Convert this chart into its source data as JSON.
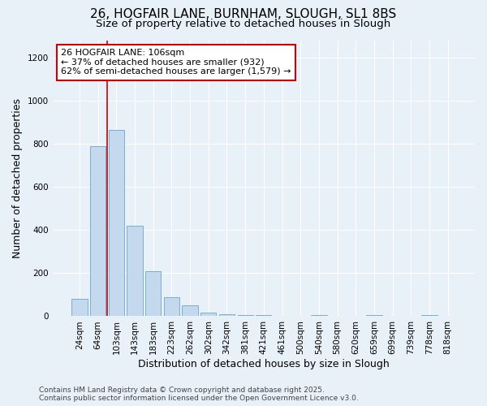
{
  "title_line1": "26, HOGFAIR LANE, BURNHAM, SLOUGH, SL1 8BS",
  "title_line2": "Size of property relative to detached houses in Slough",
  "xlabel": "Distribution of detached houses by size in Slough",
  "ylabel": "Number of detached properties",
  "categories": [
    "24sqm",
    "64sqm",
    "103sqm",
    "143sqm",
    "183sqm",
    "223sqm",
    "262sqm",
    "302sqm",
    "342sqm",
    "381sqm",
    "421sqm",
    "461sqm",
    "500sqm",
    "540sqm",
    "580sqm",
    "620sqm",
    "659sqm",
    "699sqm",
    "739sqm",
    "778sqm",
    "818sqm"
  ],
  "values": [
    80,
    790,
    865,
    420,
    210,
    90,
    50,
    15,
    10,
    5,
    5,
    2,
    0,
    5,
    0,
    0,
    5,
    0,
    0,
    5,
    0
  ],
  "bar_color": "#c5d9ee",
  "bar_edge_color": "#7aaed4",
  "red_line_x": 1.5,
  "annotation_text": "26 HOGFAIR LANE: 106sqm\n← 37% of detached houses are smaller (932)\n62% of semi-detached houses are larger (1,579) →",
  "annotation_box_color": "#ffffff",
  "annotation_box_edge_color": "#cc0000",
  "red_line_color": "#cc0000",
  "ylim": [
    0,
    1280
  ],
  "yticks": [
    0,
    200,
    400,
    600,
    800,
    1000,
    1200
  ],
  "background_color": "#e8f0f8",
  "footer_line1": "Contains HM Land Registry data © Crown copyright and database right 2025.",
  "footer_line2": "Contains public sector information licensed under the Open Government Licence v3.0.",
  "title_fontsize": 11,
  "subtitle_fontsize": 9.5,
  "axis_label_fontsize": 9,
  "tick_fontsize": 7.5,
  "annotation_fontsize": 8,
  "footer_fontsize": 6.5
}
